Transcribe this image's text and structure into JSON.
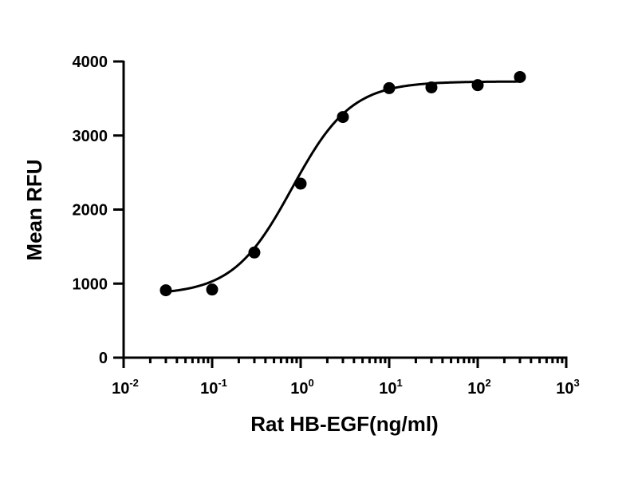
{
  "chart_data": {
    "type": "scatter",
    "xlabel": "Rat HB-EGF(ng/ml)",
    "ylabel": "Mean RFU",
    "xscale": "log",
    "xlim": [
      0.01,
      1000
    ],
    "ylim": [
      0,
      4000
    ],
    "yticks": [
      "0",
      "1000",
      "2000",
      "3000",
      "4000"
    ],
    "xticks": [
      {
        "base": "10",
        "exp": "-2"
      },
      {
        "base": "10",
        "exp": "-1"
      },
      {
        "base": "10",
        "exp": "0"
      },
      {
        "base": "10",
        "exp": "1"
      },
      {
        "base": "10",
        "exp": "2"
      },
      {
        "base": "10",
        "exp": "3"
      }
    ],
    "x": [
      0.03,
      0.1,
      0.3,
      1,
      3,
      10,
      30,
      100,
      300
    ],
    "values": [
      910,
      920,
      1420,
      2350,
      3250,
      3640,
      3650,
      3680,
      3790
    ],
    "fit": {
      "type": "4PL",
      "bottom": 850,
      "top": 3730,
      "ec50": 0.8,
      "hill": 1.3
    },
    "grid": false,
    "legend": "none"
  }
}
